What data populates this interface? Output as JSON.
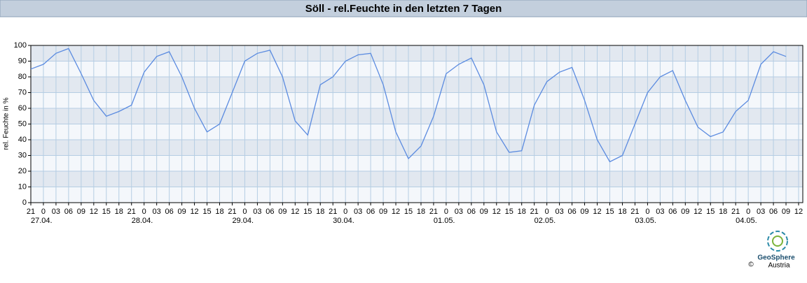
{
  "chart_data": {
    "type": "line",
    "title": "Söll - rel.Feuchte in den letzten 7 Tagen",
    "ylabel": "rel. Feuchte in %",
    "categories": [
      "21",
      "0",
      "03",
      "06",
      "09",
      "12",
      "15",
      "18",
      "21",
      "0",
      "03",
      "06",
      "09",
      "12",
      "15",
      "18",
      "21",
      "0",
      "03",
      "06",
      "09",
      "12",
      "15",
      "18",
      "21",
      "0",
      "03",
      "06",
      "09",
      "12",
      "15",
      "18",
      "21",
      "0",
      "03",
      "06",
      "09",
      "12",
      "15",
      "18",
      "21",
      "0",
      "03",
      "06",
      "09",
      "12",
      "15",
      "18",
      "21",
      "0",
      "03",
      "06",
      "09",
      "12",
      "15",
      "18",
      "21",
      "0",
      "03",
      "06",
      "09",
      "12"
    ],
    "dates": [
      "27.04.",
      "28.04.",
      "29.04.",
      "30.04.",
      "01.05.",
      "02.05.",
      "03.05.",
      "04.05."
    ],
    "series": [
      {
        "name": "rel. Feuchte",
        "color": "#5b8be0",
        "values": [
          85,
          88,
          95,
          98,
          82,
          65,
          55,
          58,
          62,
          83,
          93,
          96,
          80,
          60,
          45,
          50,
          70,
          90,
          95,
          97,
          80,
          52,
          43,
          75,
          80,
          90,
          94,
          95,
          75,
          45,
          28,
          36,
          55,
          82,
          88,
          92,
          75,
          45,
          32,
          33,
          62,
          77,
          83,
          86,
          65,
          40,
          26,
          30,
          50,
          70,
          80,
          84,
          65,
          48,
          42,
          45,
          58,
          65,
          88,
          96,
          93,
          null
        ]
      }
    ],
    "ylim": [
      0,
      100
    ],
    "yticks": [
      0,
      10,
      20,
      30,
      40,
      50,
      60,
      70,
      80,
      90,
      100
    ],
    "grid": true,
    "footer": {
      "copyright": "©",
      "brand": "GeoSphere",
      "sub": "Austria"
    }
  }
}
